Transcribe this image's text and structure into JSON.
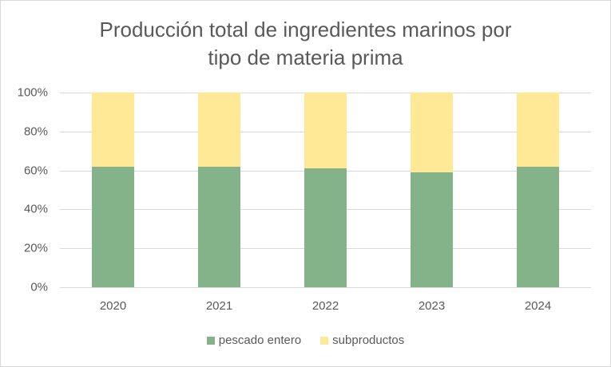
{
  "chart_data": {
    "type": "bar",
    "stacked": true,
    "percent_stacked": true,
    "title": "Producción total de ingredientes marinos por tipo de materia prima",
    "title_lines": [
      "Producción total de ingredientes marinos por",
      "tipo de materia prima"
    ],
    "xlabel": "",
    "ylabel": "",
    "categories": [
      "2020",
      "2021",
      "2022",
      "2023",
      "2024"
    ],
    "series": [
      {
        "name": "pescado entero",
        "color": "#84b38a",
        "values": [
          62,
          62,
          61,
          59,
          62
        ]
      },
      {
        "name": "subproductos",
        "color": "#ffe996",
        "values": [
          38,
          38,
          39,
          41,
          38
        ]
      }
    ],
    "ylim": [
      0,
      100
    ],
    "y_ticks": [
      "0%",
      "20%",
      "40%",
      "60%",
      "80%",
      "100%"
    ],
    "grid": true,
    "legend_position": "bottom"
  },
  "colors": {
    "text": "#595959",
    "grid": "#d9d9d9",
    "border": "#d9d9d9"
  }
}
